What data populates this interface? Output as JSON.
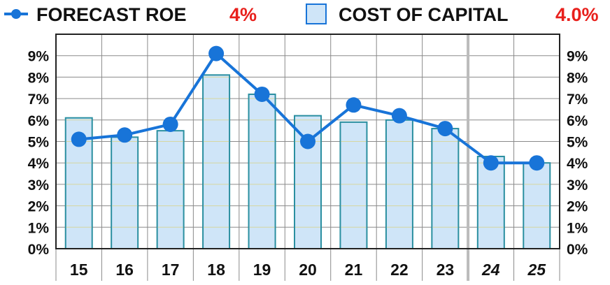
{
  "legend": {
    "roe_label": "FORECAST ROE",
    "roe_value": "4%",
    "cost_label": "COST OF CAPITAL",
    "cost_value": "4.0%"
  },
  "colors": {
    "line": "#1874d8",
    "bar_fill": "#cfe5f8",
    "bar_stroke": "#2a8fa0",
    "value_text": "#e8201c",
    "grid": "#8a8a8a",
    "grid_minor": "#d6d6a0",
    "projection_divider": "#bbbbbb"
  },
  "chart_data": {
    "type": "bar",
    "categories": [
      "15",
      "16",
      "17",
      "18",
      "19",
      "20",
      "21",
      "22",
      "23",
      "24",
      "25"
    ],
    "projected_categories": [
      "24",
      "25"
    ],
    "series": [
      {
        "name": "COST OF CAPITAL",
        "kind": "bar",
        "values": [
          6.1,
          5.2,
          5.5,
          8.1,
          7.2,
          6.2,
          5.9,
          6.0,
          5.6,
          4.3,
          4.0
        ]
      },
      {
        "name": "FORECAST ROE",
        "kind": "line",
        "values": [
          5.1,
          5.3,
          5.8,
          9.1,
          7.2,
          5.0,
          6.7,
          6.2,
          5.6,
          4.0,
          4.0
        ]
      }
    ],
    "yticks": [
      "0%",
      "1%",
      "2%",
      "3%",
      "4%",
      "5%",
      "6%",
      "7%",
      "8%",
      "9%"
    ],
    "ylim": [
      0,
      10
    ],
    "grid": true,
    "legend_position": "top"
  }
}
